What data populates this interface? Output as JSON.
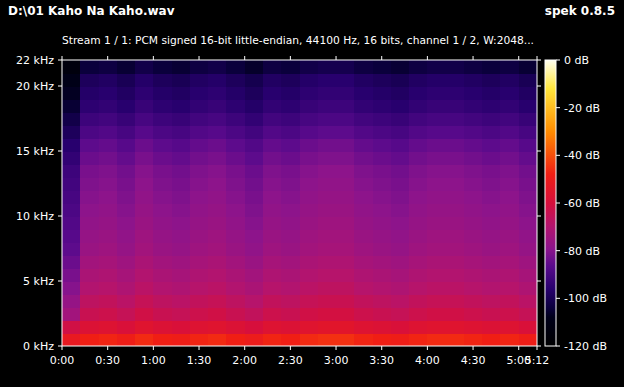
{
  "chart_data": {
    "type": "heatmap",
    "title": "D:\\01 Kaho Na Kaho.wav",
    "subtitle": "Stream 1 / 1: PCM signed 16-bit little-endian, 44100 Hz, 16 bits, channel 1 / 2, W:2048...",
    "annotation": "spek 0.8.5",
    "xlim": [
      0,
      312
    ],
    "xticks": [
      {
        "value": 0,
        "label": "0:00"
      },
      {
        "value": 30,
        "label": "0:30"
      },
      {
        "value": 60,
        "label": "1:00"
      },
      {
        "value": 90,
        "label": "1:30"
      },
      {
        "value": 120,
        "label": "2:00"
      },
      {
        "value": 150,
        "label": "2:30"
      },
      {
        "value": 180,
        "label": "3:00"
      },
      {
        "value": 210,
        "label": "3:30"
      },
      {
        "value": 240,
        "label": "4:00"
      },
      {
        "value": 270,
        "label": "4:30"
      },
      {
        "value": 300,
        "label": "5:00"
      },
      {
        "value": 312,
        "label": "5:12"
      }
    ],
    "ylim": [
      0,
      22
    ],
    "yticks": [
      {
        "value": 0,
        "label": "0 kHz"
      },
      {
        "value": 5,
        "label": "5 kHz"
      },
      {
        "value": 10,
        "label": "10 kHz"
      },
      {
        "value": 15,
        "label": "15 kHz"
      },
      {
        "value": 20,
        "label": "20 kHz"
      },
      {
        "value": 22,
        "label": "22 kHz"
      }
    ],
    "x_bins": [
      0,
      12,
      24,
      36,
      48,
      60,
      72,
      84,
      96,
      108,
      120,
      132,
      144,
      156,
      168,
      180,
      192,
      204,
      216,
      228,
      240,
      252,
      264,
      276,
      288,
      300,
      312
    ],
    "y_bins": [
      0,
      1,
      2,
      3,
      4,
      5,
      6,
      7,
      8,
      9,
      10,
      11,
      12,
      13,
      14,
      15,
      16,
      17,
      18,
      19,
      20,
      21,
      22
    ],
    "cells": [
      [
        -52,
        -48,
        -47,
        -49,
        -46,
        -48,
        -49,
        -47,
        -46,
        -48,
        -50,
        -47,
        -48,
        -46,
        -45,
        -45,
        -47,
        -48,
        -49,
        -47,
        -46,
        -46,
        -47,
        -48,
        -47,
        -49
      ],
      [
        -62,
        -58,
        -57,
        -59,
        -56,
        -58,
        -59,
        -57,
        -56,
        -58,
        -60,
        -57,
        -58,
        -56,
        -55,
        -55,
        -57,
        -58,
        -59,
        -57,
        -56,
        -56,
        -57,
        -58,
        -57,
        -59
      ],
      [
        -74,
        -64,
        -63,
        -65,
        -62,
        -64,
        -65,
        -63,
        -62,
        -64,
        -66,
        -63,
        -64,
        -62,
        -61,
        -61,
        -63,
        -64,
        -65,
        -63,
        -62,
        -62,
        -63,
        -64,
        -63,
        -65
      ],
      [
        -77,
        -67,
        -66,
        -68,
        -65,
        -67,
        -68,
        -66,
        -65,
        -67,
        -69,
        -66,
        -67,
        -65,
        -64,
        -64,
        -66,
        -67,
        -68,
        -66,
        -65,
        -65,
        -66,
        -67,
        -66,
        -68
      ],
      [
        -80,
        -70,
        -69,
        -71,
        -68,
        -70,
        -71,
        -69,
        -68,
        -70,
        -72,
        -69,
        -70,
        -68,
        -67,
        -67,
        -69,
        -70,
        -71,
        -69,
        -68,
        -68,
        -69,
        -70,
        -69,
        -71
      ],
      [
        -82,
        -72,
        -71,
        -73,
        -70,
        -72,
        -73,
        -71,
        -70,
        -72,
        -74,
        -71,
        -72,
        -70,
        -69,
        -69,
        -71,
        -72,
        -73,
        -71,
        -70,
        -70,
        -71,
        -72,
        -71,
        -73
      ],
      [
        -84,
        -74,
        -73,
        -75,
        -72,
        -74,
        -75,
        -73,
        -72,
        -74,
        -76,
        -73,
        -74,
        -72,
        -71,
        -71,
        -73,
        -74,
        -75,
        -73,
        -72,
        -72,
        -73,
        -74,
        -73,
        -75
      ],
      [
        -86,
        -76,
        -75,
        -77,
        -74,
        -76,
        -77,
        -75,
        -74,
        -76,
        -78,
        -75,
        -76,
        -74,
        -73,
        -73,
        -75,
        -76,
        -77,
        -75,
        -74,
        -74,
        -75,
        -76,
        -75,
        -77
      ],
      [
        -87,
        -77,
        -76,
        -78,
        -75,
        -77,
        -78,
        -76,
        -75,
        -77,
        -79,
        -76,
        -77,
        -75,
        -74,
        -74,
        -76,
        -77,
        -78,
        -76,
        -75,
        -75,
        -76,
        -77,
        -76,
        -78
      ],
      [
        -88,
        -78,
        -77,
        -79,
        -76,
        -78,
        -79,
        -77,
        -76,
        -78,
        -80,
        -77,
        -78,
        -76,
        -75,
        -75,
        -77,
        -78,
        -79,
        -77,
        -76,
        -76,
        -77,
        -78,
        -77,
        -79
      ],
      [
        -89,
        -79,
        -78,
        -80,
        -77,
        -79,
        -80,
        -78,
        -77,
        -79,
        -81,
        -78,
        -79,
        -77,
        -76,
        -76,
        -78,
        -79,
        -80,
        -78,
        -77,
        -77,
        -78,
        -79,
        -78,
        -80
      ],
      [
        -90,
        -80,
        -79,
        -81,
        -78,
        -80,
        -81,
        -79,
        -78,
        -80,
        -82,
        -79,
        -80,
        -78,
        -77,
        -77,
        -79,
        -80,
        -81,
        -79,
        -78,
        -78,
        -79,
        -80,
        -79,
        -81
      ],
      [
        -91,
        -81,
        -80,
        -82,
        -79,
        -81,
        -82,
        -80,
        -79,
        -81,
        -83,
        -80,
        -81,
        -79,
        -78,
        -78,
        -80,
        -81,
        -82,
        -80,
        -79,
        -79,
        -80,
        -81,
        -80,
        -82
      ],
      [
        -92,
        -82,
        -81,
        -83,
        -80,
        -82,
        -83,
        -81,
        -80,
        -82,
        -84,
        -81,
        -82,
        -80,
        -79,
        -79,
        -81,
        -82,
        -83,
        -81,
        -80,
        -80,
        -81,
        -82,
        -81,
        -83
      ],
      [
        -94,
        -84,
        -83,
        -85,
        -82,
        -84,
        -85,
        -83,
        -82,
        -84,
        -86,
        -83,
        -84,
        -82,
        -81,
        -81,
        -83,
        -84,
        -85,
        -83,
        -82,
        -82,
        -83,
        -84,
        -83,
        -85
      ],
      [
        -96,
        -86,
        -85,
        -87,
        -84,
        -86,
        -87,
        -85,
        -84,
        -86,
        -88,
        -85,
        -86,
        -84,
        -83,
        -83,
        -85,
        -86,
        -87,
        -85,
        -84,
        -84,
        -85,
        -86,
        -85,
        -87
      ],
      [
        -99,
        -89,
        -88,
        -90,
        -87,
        -89,
        -90,
        -88,
        -87,
        -89,
        -91,
        -88,
        -89,
        -87,
        -86,
        -86,
        -88,
        -89,
        -90,
        -88,
        -87,
        -87,
        -88,
        -89,
        -88,
        -90
      ],
      [
        -102,
        -92,
        -91,
        -93,
        -90,
        -92,
        -93,
        -91,
        -90,
        -92,
        -94,
        -91,
        -92,
        -90,
        -89,
        -89,
        -91,
        -92,
        -93,
        -91,
        -90,
        -90,
        -91,
        -92,
        -91,
        -93
      ],
      [
        -105,
        -95,
        -94,
        -96,
        -93,
        -95,
        -96,
        -94,
        -93,
        -95,
        -97,
        -94,
        -95,
        -93,
        -92,
        -92,
        -94,
        -95,
        -96,
        -94,
        -93,
        -93,
        -94,
        -95,
        -94,
        -96
      ],
      [
        -107,
        -97,
        -96,
        -98,
        -95,
        -97,
        -98,
        -96,
        -95,
        -97,
        -99,
        -96,
        -97,
        -95,
        -94,
        -94,
        -96,
        -97,
        -98,
        -96,
        -95,
        -95,
        -96,
        -97,
        -96,
        -98
      ],
      [
        -109,
        -99,
        -98,
        -100,
        -97,
        -99,
        -100,
        -98,
        -97,
        -99,
        -101,
        -98,
        -99,
        -97,
        -96,
        -96,
        -98,
        -99,
        -100,
        -98,
        -97,
        -97,
        -98,
        -99,
        -98,
        -100
      ],
      [
        -114,
        -104,
        -103,
        -105,
        -102,
        -104,
        -105,
        -103,
        -102,
        -104,
        -106,
        -103,
        -104,
        -102,
        -101,
        -101,
        -103,
        -104,
        -105,
        -103,
        -102,
        -102,
        -103,
        -104,
        -103,
        -105
      ]
    ],
    "colorbar_range": [
      -120,
      0
    ],
    "colorbar_ticks": [
      {
        "value": 0,
        "label": "0 dB"
      },
      {
        "value": -20,
        "label": "-20 dB"
      },
      {
        "value": -40,
        "label": "-40 dB"
      },
      {
        "value": -60,
        "label": "-60 dB"
      },
      {
        "value": -80,
        "label": "-80 dB"
      },
      {
        "value": -100,
        "label": "-100 dB"
      },
      {
        "value": -120,
        "label": "-120 dB"
      }
    ]
  }
}
